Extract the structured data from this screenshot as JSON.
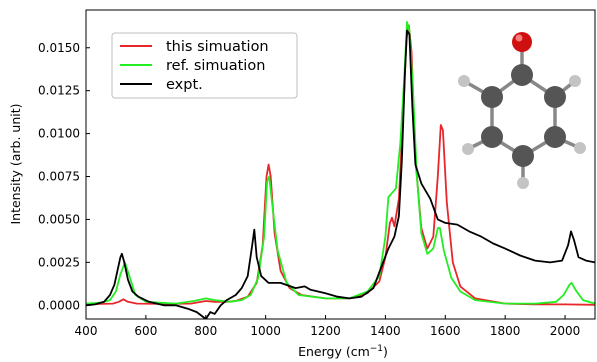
{
  "chart_data": {
    "type": "line",
    "xlabel": "Energy (cm",
    "xlabel_sup": "−1",
    "xlabel_suffix": ")",
    "ylabel": "Intensity (arb. unit)",
    "xlim": [
      400,
      2100
    ],
    "ylim": [
      -0.0008,
      0.0172
    ],
    "xticks": [
      400,
      600,
      800,
      1000,
      1200,
      1400,
      1600,
      1800,
      2000
    ],
    "yticks": [
      0.0,
      0.0025,
      0.005,
      0.0075,
      0.01,
      0.0125,
      0.015
    ],
    "ytick_labels": [
      "0.0000",
      "0.0025",
      "0.0050",
      "0.0075",
      "0.0100",
      "0.0125",
      "0.0150"
    ],
    "legend_position": "upper-left",
    "series": [
      {
        "name": "this simuation",
        "color": "#e8262b",
        "points": [
          [
            400,
            5e-05
          ],
          [
            450,
            8e-05
          ],
          [
            490,
            0.0001
          ],
          [
            510,
            0.0002
          ],
          [
            525,
            0.00035
          ],
          [
            540,
            0.0002
          ],
          [
            570,
            0.0001
          ],
          [
            650,
            8e-05
          ],
          [
            750,
            0.0001
          ],
          [
            800,
            0.00025
          ],
          [
            830,
            0.0002
          ],
          [
            870,
            0.0002
          ],
          [
            900,
            0.00025
          ],
          [
            940,
            0.0005
          ],
          [
            970,
            0.0013
          ],
          [
            990,
            0.0035
          ],
          [
            1003,
            0.0075
          ],
          [
            1010,
            0.0082
          ],
          [
            1017,
            0.0075
          ],
          [
            1030,
            0.0042
          ],
          [
            1050,
            0.002
          ],
          [
            1080,
            0.001
          ],
          [
            1120,
            0.0006
          ],
          [
            1200,
            0.0004
          ],
          [
            1280,
            0.0004
          ],
          [
            1340,
            0.0007
          ],
          [
            1380,
            0.0014
          ],
          [
            1400,
            0.0028
          ],
          [
            1415,
            0.0048
          ],
          [
            1422,
            0.0051
          ],
          [
            1430,
            0.0046
          ],
          [
            1445,
            0.0062
          ],
          [
            1460,
            0.0115
          ],
          [
            1470,
            0.0155
          ],
          [
            1478,
            0.0163
          ],
          [
            1487,
            0.0148
          ],
          [
            1500,
            0.0085
          ],
          [
            1520,
            0.0045
          ],
          [
            1540,
            0.0033
          ],
          [
            1560,
            0.004
          ],
          [
            1575,
            0.0075
          ],
          [
            1585,
            0.0105
          ],
          [
            1592,
            0.0102
          ],
          [
            1605,
            0.006
          ],
          [
            1625,
            0.0025
          ],
          [
            1650,
            0.0011
          ],
          [
            1700,
            0.0004
          ],
          [
            1800,
            0.0001
          ],
          [
            1900,
            5e-05
          ],
          [
            2000,
            5e-05
          ],
          [
            2100,
            3e-05
          ]
        ]
      },
      {
        "name": "ref. simuation",
        "color": "#22ee22",
        "points": [
          [
            400,
            0.0001
          ],
          [
            450,
            0.00015
          ],
          [
            480,
            0.0003
          ],
          [
            500,
            0.0008
          ],
          [
            515,
            0.0018
          ],
          [
            530,
            0.0025
          ],
          [
            545,
            0.0017
          ],
          [
            565,
            0.0006
          ],
          [
            600,
            0.0002
          ],
          [
            700,
            0.0001
          ],
          [
            760,
            0.00025
          ],
          [
            800,
            0.0004
          ],
          [
            830,
            0.0003
          ],
          [
            880,
            0.0002
          ],
          [
            920,
            0.0003
          ],
          [
            950,
            0.0006
          ],
          [
            975,
            0.0016
          ],
          [
            995,
            0.004
          ],
          [
            1005,
            0.0072
          ],
          [
            1012,
            0.0075
          ],
          [
            1020,
            0.0062
          ],
          [
            1040,
            0.0032
          ],
          [
            1070,
            0.0013
          ],
          [
            1110,
            0.0006
          ],
          [
            1200,
            0.0004
          ],
          [
            1280,
            0.0004
          ],
          [
            1340,
            0.0008
          ],
          [
            1380,
            0.0017
          ],
          [
            1400,
            0.004
          ],
          [
            1410,
            0.0063
          ],
          [
            1420,
            0.0065
          ],
          [
            1435,
            0.0068
          ],
          [
            1450,
            0.0095
          ],
          [
            1462,
            0.013
          ],
          [
            1472,
            0.0165
          ],
          [
            1480,
            0.016
          ],
          [
            1492,
            0.0125
          ],
          [
            1505,
            0.0075
          ],
          [
            1520,
            0.0042
          ],
          [
            1540,
            0.003
          ],
          [
            1560,
            0.0033
          ],
          [
            1575,
            0.0045
          ],
          [
            1582,
            0.0045
          ],
          [
            1595,
            0.0032
          ],
          [
            1620,
            0.0016
          ],
          [
            1650,
            0.0008
          ],
          [
            1700,
            0.0003
          ],
          [
            1800,
            0.0001
          ],
          [
            1900,
            0.0001
          ],
          [
            1970,
            0.0002
          ],
          [
            1995,
            0.0006
          ],
          [
            2015,
            0.0012
          ],
          [
            2022,
            0.0013
          ],
          [
            2035,
            0.0009
          ],
          [
            2060,
            0.0003
          ],
          [
            2100,
            0.0001
          ]
        ]
      },
      {
        "name": "expt.",
        "color": "#000000",
        "points": [
          [
            400,
            0.0
          ],
          [
            430,
            5e-05
          ],
          [
            460,
            0.0002
          ],
          [
            480,
            0.0006
          ],
          [
            495,
            0.0012
          ],
          [
            505,
            0.002
          ],
          [
            515,
            0.0028
          ],
          [
            520,
            0.003
          ],
          [
            528,
            0.0025
          ],
          [
            540,
            0.0015
          ],
          [
            555,
            0.0008
          ],
          [
            575,
            0.0005
          ],
          [
            610,
            0.0002
          ],
          [
            660,
            0.0
          ],
          [
            700,
            0.0
          ],
          [
            740,
            -0.0002
          ],
          [
            770,
            -0.0004
          ],
          [
            800,
            -0.0008
          ],
          [
            815,
            -0.0004
          ],
          [
            830,
            -0.0005
          ],
          [
            850,
            0.0
          ],
          [
            870,
            0.0003
          ],
          [
            900,
            0.0006
          ],
          [
            920,
            0.001
          ],
          [
            940,
            0.0017
          ],
          [
            955,
            0.0035
          ],
          [
            962,
            0.0044
          ],
          [
            970,
            0.0028
          ],
          [
            985,
            0.0017
          ],
          [
            1010,
            0.0013
          ],
          [
            1050,
            0.0013
          ],
          [
            1100,
            0.001
          ],
          [
            1130,
            0.0011
          ],
          [
            1150,
            0.0009
          ],
          [
            1200,
            0.0007
          ],
          [
            1240,
            0.0005
          ],
          [
            1280,
            0.0004
          ],
          [
            1320,
            0.0005
          ],
          [
            1360,
            0.001
          ],
          [
            1390,
            0.0024
          ],
          [
            1410,
            0.0033
          ],
          [
            1430,
            0.004
          ],
          [
            1445,
            0.0052
          ],
          [
            1455,
            0.0085
          ],
          [
            1465,
            0.0135
          ],
          [
            1472,
            0.016
          ],
          [
            1480,
            0.0158
          ],
          [
            1490,
            0.0115
          ],
          [
            1500,
            0.0082
          ],
          [
            1520,
            0.0071
          ],
          [
            1550,
            0.0062
          ],
          [
            1575,
            0.005
          ],
          [
            1600,
            0.0048
          ],
          [
            1640,
            0.0047
          ],
          [
            1680,
            0.0043
          ],
          [
            1720,
            0.004
          ],
          [
            1760,
            0.0036
          ],
          [
            1800,
            0.0033
          ],
          [
            1850,
            0.0029
          ],
          [
            1900,
            0.0026
          ],
          [
            1950,
            0.0025
          ],
          [
            1990,
            0.0026
          ],
          [
            2010,
            0.0035
          ],
          [
            2020,
            0.0043
          ],
          [
            2030,
            0.0038
          ],
          [
            2045,
            0.0028
          ],
          [
            2070,
            0.0026
          ],
          [
            2100,
            0.0025
          ]
        ]
      }
    ]
  }
}
